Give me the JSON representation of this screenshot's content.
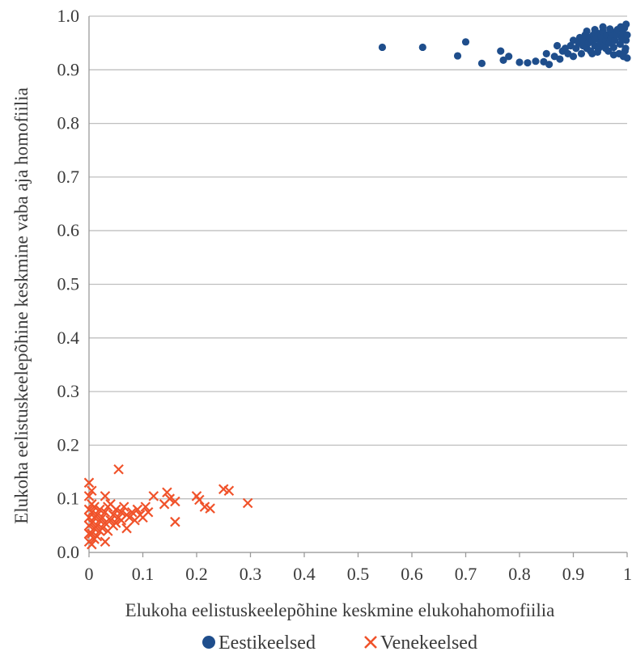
{
  "chart_data": {
    "type": "scatter",
    "xlabel": "Elukoha eelistuskeelepõhine keskmine elukohahomofiilia",
    "ylabel": "Elukoha eelistuskeelepõhine keskmine vaba aja homofiilia",
    "xlim": [
      0,
      1
    ],
    "ylim": [
      0,
      1
    ],
    "x_ticks": [
      "0",
      "0.1",
      "0.2",
      "0.3",
      "0.4",
      "0.5",
      "0.6",
      "0.7",
      "0.8",
      "0.9",
      "1"
    ],
    "y_ticks": [
      "0.0",
      "0.1",
      "0.2",
      "0.3",
      "0.4",
      "0.5",
      "0.6",
      "0.7",
      "0.8",
      "0.9",
      "1.0"
    ],
    "grid": "horizontal",
    "legend_position": "bottom",
    "series": [
      {
        "name": "Eestikeelsed",
        "marker": "circle",
        "color": "#1f4e8c",
        "points": [
          [
            0.545,
            0.942
          ],
          [
            0.62,
            0.942
          ],
          [
            0.7,
            0.952
          ],
          [
            0.685,
            0.926
          ],
          [
            0.73,
            0.912
          ],
          [
            0.765,
            0.935
          ],
          [
            0.77,
            0.918
          ],
          [
            0.78,
            0.925
          ],
          [
            0.8,
            0.914
          ],
          [
            0.815,
            0.913
          ],
          [
            0.83,
            0.916
          ],
          [
            0.845,
            0.915
          ],
          [
            0.85,
            0.93
          ],
          [
            0.855,
            0.91
          ],
          [
            0.865,
            0.925
          ],
          [
            0.87,
            0.945
          ],
          [
            0.875,
            0.92
          ],
          [
            0.88,
            0.935
          ],
          [
            0.885,
            0.94
          ],
          [
            0.89,
            0.93
          ],
          [
            0.895,
            0.945
          ],
          [
            0.9,
            0.955
          ],
          [
            0.9,
            0.925
          ],
          [
            0.905,
            0.94
          ],
          [
            0.91,
            0.95
          ],
          [
            0.912,
            0.96
          ],
          [
            0.915,
            0.93
          ],
          [
            0.918,
            0.945
          ],
          [
            0.92,
            0.955
          ],
          [
            0.922,
            0.965
          ],
          [
            0.925,
            0.94
          ],
          [
            0.928,
            0.95
          ],
          [
            0.93,
            0.96
          ],
          [
            0.932,
            0.935
          ],
          [
            0.935,
            0.955
          ],
          [
            0.937,
            0.965
          ],
          [
            0.94,
            0.945
          ],
          [
            0.942,
            0.958
          ],
          [
            0.945,
            0.968
          ],
          [
            0.947,
            0.94
          ],
          [
            0.95,
            0.95
          ],
          [
            0.952,
            0.962
          ],
          [
            0.955,
            0.972
          ],
          [
            0.957,
            0.945
          ],
          [
            0.96,
            0.955
          ],
          [
            0.962,
            0.965
          ],
          [
            0.965,
            0.935
          ],
          [
            0.967,
            0.95
          ],
          [
            0.97,
            0.96
          ],
          [
            0.972,
            0.97
          ],
          [
            0.975,
            0.942
          ],
          [
            0.977,
            0.955
          ],
          [
            0.98,
            0.965
          ],
          [
            0.982,
            0.975
          ],
          [
            0.985,
            0.93
          ],
          [
            0.987,
            0.948
          ],
          [
            0.99,
            0.958
          ],
          [
            0.992,
            0.968
          ],
          [
            0.995,
            0.978
          ],
          [
            0.997,
            0.94
          ],
          [
            0.998,
            0.955
          ],
          [
            1.0,
            0.965
          ],
          [
            1.0,
            0.922
          ],
          [
            0.996,
            0.935
          ],
          [
            0.993,
            0.925
          ],
          [
            0.94,
            0.975
          ],
          [
            0.955,
            0.98
          ],
          [
            0.968,
            0.976
          ],
          [
            0.925,
            0.972
          ],
          [
            0.935,
            0.93
          ],
          [
            0.96,
            0.94
          ],
          [
            0.945,
            0.933
          ],
          [
            0.975,
            0.928
          ],
          [
            0.988,
            0.98
          ],
          [
            0.998,
            0.985
          ]
        ]
      },
      {
        "name": "Venekeelsed",
        "marker": "x",
        "color": "#f0522a",
        "points": [
          [
            0.055,
            0.155
          ],
          [
            0.0,
            0.13
          ],
          [
            0.005,
            0.115
          ],
          [
            0.0,
            0.105
          ],
          [
            0.03,
            0.105
          ],
          [
            0.145,
            0.112
          ],
          [
            0.12,
            0.105
          ],
          [
            0.25,
            0.118
          ],
          [
            0.26,
            0.115
          ],
          [
            0.2,
            0.105
          ],
          [
            0.205,
            0.098
          ],
          [
            0.15,
            0.1
          ],
          [
            0.16,
            0.095
          ],
          [
            0.14,
            0.09
          ],
          [
            0.295,
            0.092
          ],
          [
            0.215,
            0.085
          ],
          [
            0.225,
            0.082
          ],
          [
            0.16,
            0.057
          ],
          [
            0.105,
            0.085
          ],
          [
            0.11,
            0.075
          ],
          [
            0.09,
            0.08
          ],
          [
            0.095,
            0.07
          ],
          [
            0.08,
            0.075
          ],
          [
            0.075,
            0.065
          ],
          [
            0.065,
            0.085
          ],
          [
            0.06,
            0.075
          ],
          [
            0.055,
            0.065
          ],
          [
            0.05,
            0.08
          ],
          [
            0.045,
            0.07
          ],
          [
            0.04,
            0.06
          ],
          [
            0.035,
            0.085
          ],
          [
            0.03,
            0.075
          ],
          [
            0.03,
            0.055
          ],
          [
            0.025,
            0.065
          ],
          [
            0.025,
            0.045
          ],
          [
            0.02,
            0.08
          ],
          [
            0.02,
            0.06
          ],
          [
            0.02,
            0.04
          ],
          [
            0.015,
            0.07
          ],
          [
            0.015,
            0.05
          ],
          [
            0.015,
            0.03
          ],
          [
            0.01,
            0.085
          ],
          [
            0.01,
            0.065
          ],
          [
            0.01,
            0.045
          ],
          [
            0.01,
            0.025
          ],
          [
            0.005,
            0.09
          ],
          [
            0.005,
            0.075
          ],
          [
            0.005,
            0.055
          ],
          [
            0.005,
            0.035
          ],
          [
            0.005,
            0.015
          ],
          [
            0.0,
            0.08
          ],
          [
            0.0,
            0.065
          ],
          [
            0.0,
            0.05
          ],
          [
            0.0,
            0.035
          ],
          [
            0.0,
            0.02
          ],
          [
            0.03,
            0.02
          ],
          [
            0.045,
            0.05
          ],
          [
            0.07,
            0.045
          ],
          [
            0.085,
            0.06
          ],
          [
            0.1,
            0.065
          ],
          [
            0.035,
            0.04
          ],
          [
            0.05,
            0.055
          ],
          [
            0.06,
            0.06
          ],
          [
            0.07,
            0.07
          ],
          [
            0.04,
            0.09
          ]
        ]
      }
    ]
  }
}
